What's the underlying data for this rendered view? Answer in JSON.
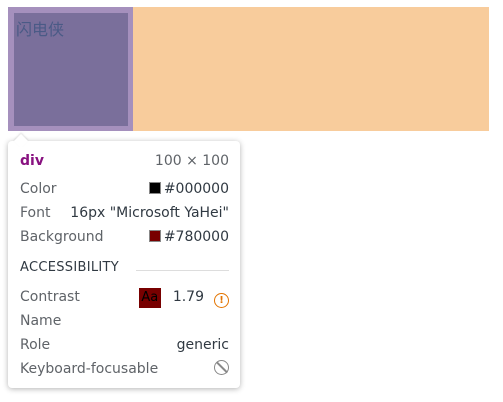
{
  "page": {
    "element_text": "闪电侠"
  },
  "tooltip": {
    "tag": "div",
    "size": "100 × 100",
    "rows": [
      {
        "label": "Color",
        "value": "#000000"
      },
      {
        "label": "Font",
        "value": "16px \"Microsoft YaHei\""
      },
      {
        "label": "Background",
        "value": "#780000"
      }
    ],
    "section": "ACCESSIBILITY",
    "accessibility": [
      {
        "label": "Contrast",
        "sample": "Aa",
        "value": "1.79"
      },
      {
        "label": "Name"
      },
      {
        "label": "Role",
        "value": "generic"
      },
      {
        "label": "Keyboard-focusable"
      }
    ]
  }
}
